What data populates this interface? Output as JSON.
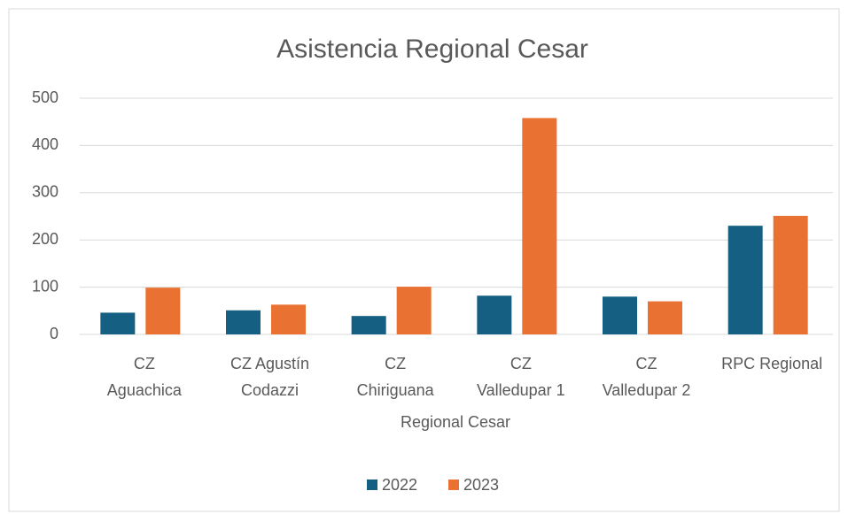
{
  "chart_data": {
    "type": "bar",
    "title": "Asistencia Regional Cesar",
    "x_label": "Regional Cesar",
    "categories": [
      "CZ\nAguachica",
      "CZ Agustín\nCodazzi",
      "CZ\nChiriguana",
      "CZ\nValledupar 1",
      "CZ\nValledupar 2",
      "RPC Regional"
    ],
    "series": [
      {
        "name": "2022",
        "color": "#156082",
        "values": [
          46,
          51,
          39,
          82,
          80,
          230
        ]
      },
      {
        "name": "2023",
        "color": "#E97132",
        "values": [
          99,
          63,
          101,
          458,
          70,
          251
        ]
      }
    ],
    "ylim": [
      0,
      500
    ],
    "yticks": [
      0,
      100,
      200,
      300,
      400,
      500
    ],
    "grid": true,
    "legend": "bottom"
  }
}
